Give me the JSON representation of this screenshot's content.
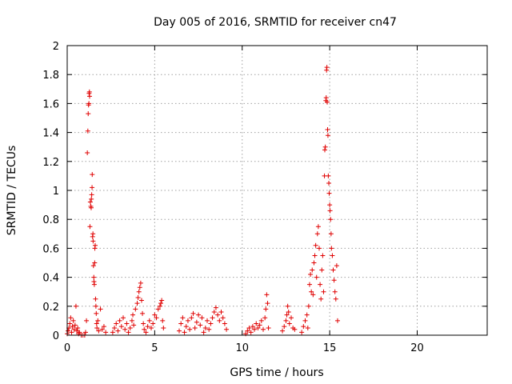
{
  "chart_data": {
    "type": "scatter",
    "title": "Day 005 of 2016, SRMTID for receiver cn47",
    "xlabel": "GPS time / hours",
    "ylabel": "SRMTID / TECUs",
    "xlim": [
      0,
      24
    ],
    "ylim": [
      0,
      2
    ],
    "xticks": [
      0,
      5,
      10,
      15,
      20
    ],
    "yticks": [
      0,
      0.2,
      0.4,
      0.6,
      0.8,
      1,
      1.2,
      1.4,
      1.6,
      1.8,
      2
    ],
    "ytick_labels": [
      "0",
      "0.2",
      "0.4",
      "0.6",
      "0.8",
      "1",
      "1.2",
      "1.4",
      "1.6",
      "1.8",
      "2"
    ],
    "grid": true,
    "marker": "+",
    "series_color": "#e00000",
    "points": [
      [
        0.0,
        0.01
      ],
      [
        0.05,
        0.03
      ],
      [
        0.1,
        0.05
      ],
      [
        0.15,
        0.08
      ],
      [
        0.2,
        0.12
      ],
      [
        0.25,
        0.02
      ],
      [
        0.3,
        0.06
      ],
      [
        0.35,
        0.1
      ],
      [
        0.4,
        0.04
      ],
      [
        0.45,
        0.07
      ],
      [
        0.5,
        0.2
      ],
      [
        0.55,
        0.03
      ],
      [
        0.6,
        0.05
      ],
      [
        0.65,
        0.01
      ],
      [
        0.7,
        0.02
      ],
      [
        0.8,
        0.0
      ],
      [
        0.9,
        0.0
      ],
      [
        1.0,
        0.0
      ],
      [
        1.05,
        0.02
      ],
      [
        1.1,
        0.1
      ],
      [
        1.15,
        1.26
      ],
      [
        1.18,
        1.41
      ],
      [
        1.2,
        1.53
      ],
      [
        1.22,
        1.59
      ],
      [
        1.24,
        1.6
      ],
      [
        1.25,
        1.67
      ],
      [
        1.27,
        1.68
      ],
      [
        1.28,
        1.65
      ],
      [
        1.3,
        0.75
      ],
      [
        1.32,
        0.92
      ],
      [
        1.35,
        0.89
      ],
      [
        1.37,
        0.88
      ],
      [
        1.38,
        0.94
      ],
      [
        1.4,
        0.97
      ],
      [
        1.42,
        1.02
      ],
      [
        1.43,
        1.11
      ],
      [
        1.45,
        0.68
      ],
      [
        1.47,
        0.7
      ],
      [
        1.48,
        0.65
      ],
      [
        1.5,
        0.48
      ],
      [
        1.52,
        0.4
      ],
      [
        1.53,
        0.37
      ],
      [
        1.55,
        0.35
      ],
      [
        1.57,
        0.5
      ],
      [
        1.58,
        0.6
      ],
      [
        1.6,
        0.62
      ],
      [
        1.62,
        0.25
      ],
      [
        1.64,
        0.2
      ],
      [
        1.66,
        0.15
      ],
      [
        1.68,
        0.08
      ],
      [
        1.7,
        0.05
      ],
      [
        1.75,
        0.1
      ],
      [
        1.8,
        0.03
      ],
      [
        1.9,
        0.18
      ],
      [
        2.0,
        0.04
      ],
      [
        2.1,
        0.06
      ],
      [
        2.2,
        0.02
      ],
      [
        2.6,
        0.02
      ],
      [
        2.7,
        0.05
      ],
      [
        2.8,
        0.08
      ],
      [
        2.9,
        0.03
      ],
      [
        3.0,
        0.1
      ],
      [
        3.1,
        0.06
      ],
      [
        3.2,
        0.12
      ],
      [
        3.3,
        0.04
      ],
      [
        3.4,
        0.08
      ],
      [
        3.5,
        0.02
      ],
      [
        3.6,
        0.05
      ],
      [
        3.7,
        0.1
      ],
      [
        3.75,
        0.14
      ],
      [
        3.8,
        0.07
      ],
      [
        3.9,
        0.18
      ],
      [
        4.0,
        0.22
      ],
      [
        4.05,
        0.26
      ],
      [
        4.1,
        0.3
      ],
      [
        4.15,
        0.33
      ],
      [
        4.2,
        0.36
      ],
      [
        4.25,
        0.24
      ],
      [
        4.3,
        0.15
      ],
      [
        4.35,
        0.08
      ],
      [
        4.4,
        0.04
      ],
      [
        4.5,
        0.02
      ],
      [
        4.6,
        0.06
      ],
      [
        4.7,
        0.1
      ],
      [
        4.8,
        0.05
      ],
      [
        4.9,
        0.08
      ],
      [
        5.0,
        0.14
      ],
      [
        5.1,
        0.12
      ],
      [
        5.2,
        0.18
      ],
      [
        5.3,
        0.2
      ],
      [
        5.35,
        0.22
      ],
      [
        5.4,
        0.24
      ],
      [
        5.45,
        0.1
      ],
      [
        5.5,
        0.05
      ],
      [
        6.4,
        0.03
      ],
      [
        6.5,
        0.08
      ],
      [
        6.6,
        0.12
      ],
      [
        6.7,
        0.02
      ],
      [
        6.8,
        0.06
      ],
      [
        6.9,
        0.1
      ],
      [
        7.0,
        0.04
      ],
      [
        7.1,
        0.12
      ],
      [
        7.2,
        0.15
      ],
      [
        7.3,
        0.05
      ],
      [
        7.4,
        0.09
      ],
      [
        7.5,
        0.14
      ],
      [
        7.6,
        0.07
      ],
      [
        7.7,
        0.12
      ],
      [
        7.8,
        0.02
      ],
      [
        7.9,
        0.05
      ],
      [
        8.0,
        0.1
      ],
      [
        8.1,
        0.04
      ],
      [
        8.2,
        0.08
      ],
      [
        8.3,
        0.12
      ],
      [
        8.4,
        0.16
      ],
      [
        8.5,
        0.19
      ],
      [
        8.6,
        0.14
      ],
      [
        8.7,
        0.1
      ],
      [
        8.8,
        0.16
      ],
      [
        8.9,
        0.12
      ],
      [
        9.0,
        0.08
      ],
      [
        9.1,
        0.04
      ],
      [
        10.2,
        0.01
      ],
      [
        10.3,
        0.03
      ],
      [
        10.4,
        0.05
      ],
      [
        10.5,
        0.02
      ],
      [
        10.6,
        0.06
      ],
      [
        10.7,
        0.04
      ],
      [
        10.8,
        0.08
      ],
      [
        10.9,
        0.05
      ],
      [
        11.0,
        0.07
      ],
      [
        11.1,
        0.1
      ],
      [
        11.2,
        0.04
      ],
      [
        11.3,
        0.12
      ],
      [
        11.35,
        0.18
      ],
      [
        11.4,
        0.28
      ],
      [
        11.45,
        0.22
      ],
      [
        11.5,
        0.05
      ],
      [
        12.3,
        0.03
      ],
      [
        12.4,
        0.06
      ],
      [
        12.5,
        0.1
      ],
      [
        12.55,
        0.14
      ],
      [
        12.6,
        0.2
      ],
      [
        12.65,
        0.16
      ],
      [
        12.7,
        0.08
      ],
      [
        12.8,
        0.12
      ],
      [
        12.9,
        0.05
      ],
      [
        13.0,
        0.04
      ],
      [
        13.4,
        0.02
      ],
      [
        13.5,
        0.06
      ],
      [
        13.6,
        0.1
      ],
      [
        13.7,
        0.14
      ],
      [
        13.75,
        0.05
      ],
      [
        13.8,
        0.2
      ],
      [
        13.85,
        0.35
      ],
      [
        13.9,
        0.42
      ],
      [
        13.95,
        0.3
      ],
      [
        14.0,
        0.45
      ],
      [
        14.05,
        0.28
      ],
      [
        14.1,
        0.5
      ],
      [
        14.15,
        0.55
      ],
      [
        14.2,
        0.62
      ],
      [
        14.25,
        0.4
      ],
      [
        14.3,
        0.7
      ],
      [
        14.35,
        0.75
      ],
      [
        14.4,
        0.6
      ],
      [
        14.45,
        0.35
      ],
      [
        14.5,
        0.25
      ],
      [
        14.55,
        0.45
      ],
      [
        14.6,
        0.55
      ],
      [
        14.65,
        0.3
      ],
      [
        14.7,
        1.1
      ],
      [
        14.72,
        1.28
      ],
      [
        14.75,
        1.3
      ],
      [
        14.78,
        1.62
      ],
      [
        14.8,
        1.64
      ],
      [
        14.82,
        1.83
      ],
      [
        14.84,
        1.85
      ],
      [
        14.86,
        1.61
      ],
      [
        14.88,
        1.42
      ],
      [
        14.9,
        1.38
      ],
      [
        14.92,
        1.1
      ],
      [
        14.95,
        1.05
      ],
      [
        14.97,
        0.98
      ],
      [
        15.0,
        0.9
      ],
      [
        15.02,
        0.86
      ],
      [
        15.05,
        0.8
      ],
      [
        15.08,
        0.7
      ],
      [
        15.1,
        0.6
      ],
      [
        15.15,
        0.55
      ],
      [
        15.2,
        0.45
      ],
      [
        15.25,
        0.38
      ],
      [
        15.3,
        0.3
      ],
      [
        15.35,
        0.25
      ],
      [
        15.4,
        0.48
      ],
      [
        15.45,
        0.1
      ]
    ]
  }
}
